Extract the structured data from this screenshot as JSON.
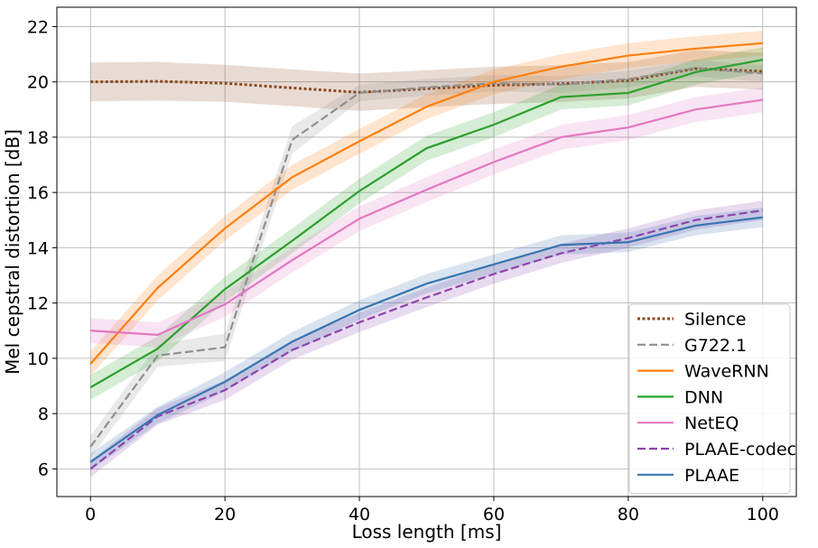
{
  "chart_data": {
    "type": "line",
    "xlabel": "Loss length [ms]",
    "ylabel": "Mel cepstral distortion [dB]",
    "xlim": [
      -5,
      105
    ],
    "ylim": [
      5,
      22.7
    ],
    "xticks": [
      0,
      20,
      40,
      60,
      80,
      100
    ],
    "yticks": [
      6,
      8,
      10,
      12,
      14,
      16,
      18,
      20,
      22
    ],
    "grid": true,
    "legend_position": "lower right",
    "series": [
      {
        "name": "Silence",
        "color": "#8c4a21",
        "dash": "dotted",
        "x": [
          0,
          10,
          20,
          30,
          40,
          50,
          60,
          70,
          80,
          90,
          100
        ],
        "values": [
          20.0,
          20.02,
          19.95,
          19.78,
          19.62,
          19.75,
          19.88,
          19.93,
          20.05,
          20.48,
          20.38
        ],
        "lower": [
          19.3,
          19.32,
          19.28,
          19.12,
          18.95,
          19.08,
          19.2,
          19.27,
          19.4,
          19.82,
          19.72
        ],
        "upper": [
          20.7,
          20.72,
          20.62,
          20.45,
          20.3,
          20.42,
          20.55,
          20.6,
          20.72,
          21.15,
          21.05
        ]
      },
      {
        "name": "G722.1",
        "color": "#8f8f8f",
        "dash": "dashed",
        "x": [
          0,
          10,
          20,
          30,
          40,
          50,
          60,
          70,
          80,
          90,
          100
        ],
        "values": [
          6.8,
          10.1,
          10.4,
          17.9,
          19.6,
          19.8,
          19.95,
          19.9,
          20.1,
          20.5,
          20.3
        ],
        "lower": [
          6.4,
          9.7,
          9.9,
          17.4,
          19.3,
          19.5,
          19.65,
          19.6,
          19.8,
          20.2,
          20.0
        ],
        "upper": [
          7.2,
          10.5,
          10.9,
          18.4,
          19.9,
          20.1,
          20.25,
          20.2,
          20.4,
          20.8,
          20.6
        ]
      },
      {
        "name": "WaveRNN",
        "color": "#ff7f0e",
        "dash": "solid",
        "x": [
          0,
          10,
          20,
          30,
          40,
          50,
          60,
          70,
          80,
          90,
          100
        ],
        "values": [
          9.8,
          12.55,
          14.7,
          16.55,
          17.85,
          19.1,
          20.0,
          20.55,
          20.95,
          21.2,
          21.4
        ],
        "lower": [
          9.35,
          12.1,
          14.25,
          16.1,
          17.4,
          18.65,
          19.55,
          20.1,
          20.5,
          20.75,
          20.95
        ],
        "upper": [
          10.25,
          13.0,
          15.15,
          17.0,
          18.3,
          19.55,
          20.45,
          21.0,
          21.4,
          21.65,
          21.85
        ]
      },
      {
        "name": "DNN",
        "color": "#2ca02c",
        "dash": "solid",
        "x": [
          0,
          10,
          20,
          30,
          40,
          50,
          60,
          70,
          80,
          90,
          100
        ],
        "values": [
          8.95,
          10.35,
          12.5,
          14.25,
          16.05,
          17.6,
          18.45,
          19.45,
          19.6,
          20.35,
          20.8
        ],
        "lower": [
          8.5,
          9.9,
          12.05,
          13.8,
          15.6,
          17.15,
          18.0,
          19.0,
          19.15,
          19.9,
          20.35
        ],
        "upper": [
          9.4,
          10.8,
          12.95,
          14.7,
          16.5,
          18.05,
          18.9,
          19.9,
          20.05,
          20.8,
          21.25
        ]
      },
      {
        "name": "NetEQ",
        "color": "#e377c2",
        "dash": "solid",
        "x": [
          0,
          10,
          20,
          30,
          40,
          50,
          60,
          70,
          80,
          90,
          100
        ],
        "values": [
          11.0,
          10.85,
          11.95,
          13.55,
          15.05,
          16.1,
          17.1,
          18.0,
          18.35,
          19.0,
          19.35
        ],
        "lower": [
          10.55,
          10.4,
          11.5,
          13.1,
          14.6,
          15.65,
          16.65,
          17.55,
          17.9,
          18.55,
          18.9
        ],
        "upper": [
          11.45,
          11.3,
          12.4,
          14.0,
          15.5,
          16.55,
          17.55,
          18.45,
          18.8,
          19.45,
          19.8
        ]
      },
      {
        "name": "PLAAE-codec",
        "color": "#8e44ad",
        "dash": "dashed",
        "x": [
          0,
          10,
          20,
          30,
          40,
          50,
          60,
          70,
          80,
          90,
          100
        ],
        "values": [
          6.0,
          7.9,
          8.85,
          10.3,
          11.3,
          12.2,
          13.05,
          13.8,
          14.35,
          15.0,
          15.35
        ],
        "lower": [
          5.7,
          7.6,
          8.5,
          9.95,
          10.95,
          11.85,
          12.7,
          13.45,
          14.0,
          14.65,
          15.0
        ],
        "upper": [
          6.3,
          8.2,
          9.2,
          10.65,
          11.65,
          12.55,
          13.4,
          14.15,
          14.7,
          15.35,
          15.7
        ]
      },
      {
        "name": "PLAAE",
        "color": "#3a75b0",
        "dash": "solid",
        "x": [
          0,
          10,
          20,
          30,
          40,
          50,
          60,
          70,
          80,
          90,
          100
        ],
        "values": [
          6.25,
          7.95,
          9.15,
          10.6,
          11.75,
          12.7,
          13.4,
          14.1,
          14.2,
          14.8,
          15.1
        ],
        "lower": [
          5.95,
          7.65,
          8.8,
          10.25,
          11.4,
          12.35,
          13.05,
          13.75,
          13.85,
          14.45,
          14.75
        ],
        "upper": [
          6.55,
          8.25,
          9.5,
          10.95,
          12.1,
          13.05,
          13.75,
          14.45,
          14.55,
          15.15,
          15.45
        ]
      }
    ]
  }
}
